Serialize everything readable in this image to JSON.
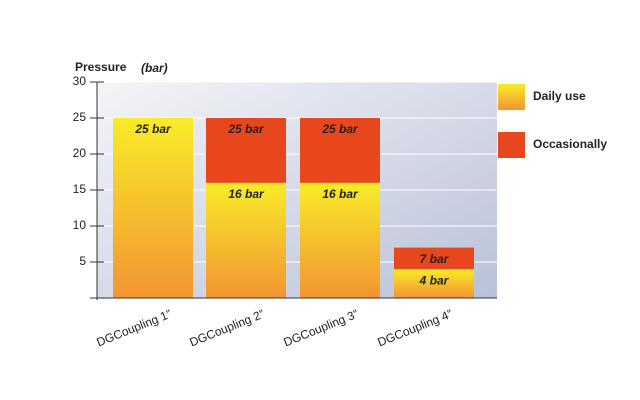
{
  "chart_data": {
    "type": "bar",
    "overlap": true,
    "y_label": "Pressure",
    "y_unit": "(bar)",
    "categories": [
      "DGCoupling 1”",
      "DGCoupling 2”",
      "DGCoupling 3”",
      "DGCoupling 4”"
    ],
    "series": [
      {
        "name": "Occasionally",
        "color": "#e8461c",
        "values": [
          null,
          25,
          25,
          7
        ],
        "value_labels": [
          null,
          "25 bar",
          "25 bar",
          "7 bar"
        ]
      },
      {
        "name": "Daily use",
        "color": "#f5c82a",
        "values": [
          25,
          16,
          16,
          4
        ],
        "value_labels": [
          "25 bar",
          "16 bar",
          "16 bar",
          "4 bar"
        ]
      }
    ],
    "legend_order": [
      1,
      0
    ],
    "ylim": [
      0,
      30
    ],
    "yticks": [
      5,
      10,
      15,
      20,
      25,
      30
    ],
    "grid": true
  }
}
